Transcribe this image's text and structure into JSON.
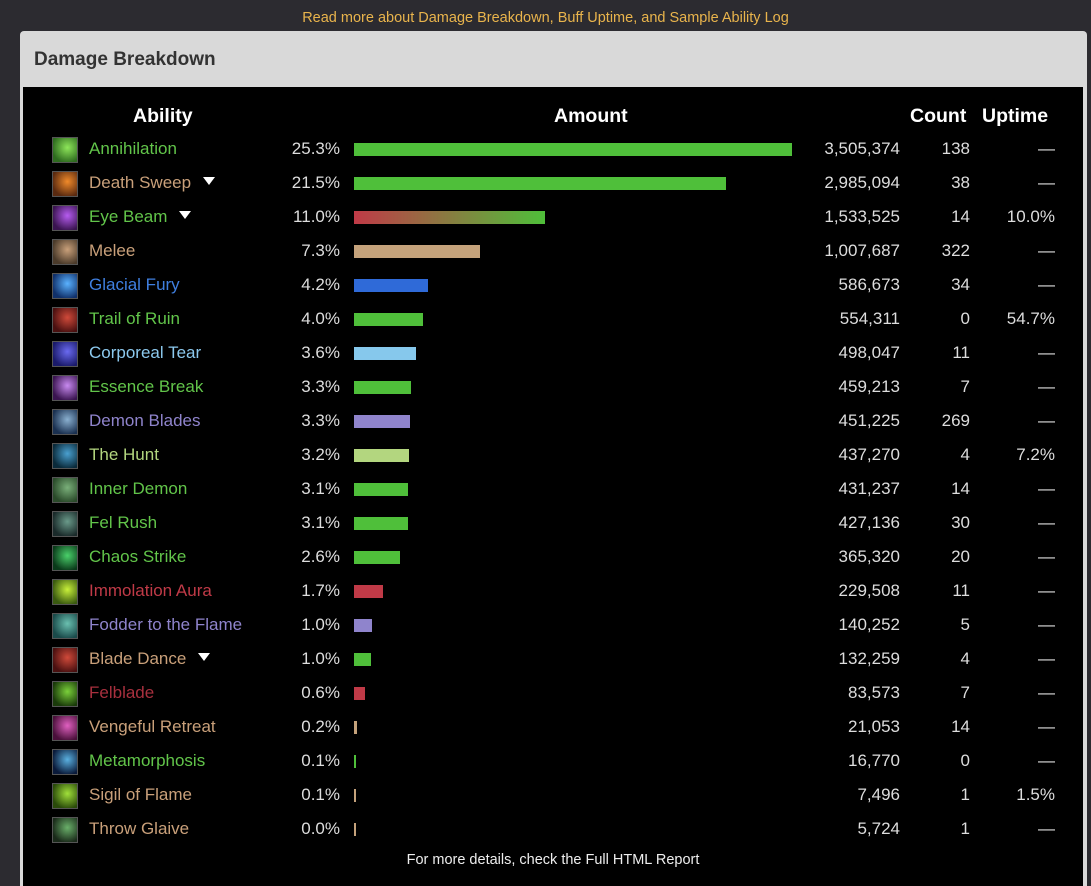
{
  "top_link": "Read more about Damage Breakdown, Buff Uptime, and Sample Ability Log",
  "panel_title": "Damage Breakdown",
  "headers": {
    "ability": "Ability",
    "amount": "Amount",
    "count": "Count",
    "uptime": "Uptime"
  },
  "footer": "For more details, check the Full HTML Report",
  "colors": {
    "green": "#4fbf3a",
    "tan": "#c4a27b",
    "blue": "#2f6ad8",
    "lightblue": "#86c8ec",
    "purple": "#8f84cc",
    "lightgreen": "#b3d67f",
    "red": "#c03a47",
    "eyebeam_gradient": [
      "#c03a47",
      "#4fbf3a"
    ]
  },
  "rows": [
    {
      "name": "Annihilation",
      "name_color": "#62c54a",
      "icon": "annihilation-icon",
      "icon_colors": [
        "#2e6b1f",
        "#8ee65a"
      ],
      "pct": "25.3%",
      "fraction": 1.0,
      "bar_color": "#4fbf3a",
      "amount": "3,505,374",
      "count": "138",
      "uptime": "—",
      "expand": false
    },
    {
      "name": "Death Sweep",
      "name_color": "#c9a07a",
      "icon": "death-sweep-icon",
      "icon_colors": [
        "#5a2a10",
        "#f08a2a"
      ],
      "pct": "21.5%",
      "fraction": 0.849,
      "bar_color": "#4fbf3a",
      "amount": "2,985,094",
      "count": "38",
      "uptime": "—",
      "expand": true
    },
    {
      "name": "Eye Beam",
      "name_color": "#62c54a",
      "icon": "eye-beam-icon",
      "icon_colors": [
        "#3a1450",
        "#b65cf0"
      ],
      "pct": "11.0%",
      "fraction": 0.436,
      "bar_color": "gradient",
      "amount": "1,533,525",
      "count": "14",
      "uptime": "10.0%",
      "expand": true
    },
    {
      "name": "Melee",
      "name_color": "#c9a07a",
      "icon": "melee-icon",
      "icon_colors": [
        "#4a3a2a",
        "#c9a07a"
      ],
      "pct": "7.3%",
      "fraction": 0.288,
      "bar_color": "#c4a27b",
      "amount": "1,007,687",
      "count": "322",
      "uptime": "—",
      "expand": false
    },
    {
      "name": "Glacial Fury",
      "name_color": "#3f7fe0",
      "icon": "glacial-fury-icon",
      "icon_colors": [
        "#10306a",
        "#5ab2ff"
      ],
      "pct": "4.2%",
      "fraction": 0.168,
      "bar_color": "#2f6ad8",
      "amount": "586,673",
      "count": "34",
      "uptime": "—",
      "expand": false
    },
    {
      "name": "Trail of Ruin",
      "name_color": "#62c54a",
      "icon": "trail-of-ruin-icon",
      "icon_colors": [
        "#4a1010",
        "#d04a3a"
      ],
      "pct": "4.0%",
      "fraction": 0.158,
      "bar_color": "#4fbf3a",
      "amount": "554,311",
      "count": "0",
      "uptime": "54.7%",
      "expand": false
    },
    {
      "name": "Corporeal Tear",
      "name_color": "#8cc9ee",
      "icon": "corporeal-tear-icon",
      "icon_colors": [
        "#1a1a6a",
        "#6a6af0"
      ],
      "pct": "3.6%",
      "fraction": 0.142,
      "bar_color": "#86c8ec",
      "amount": "498,047",
      "count": "11",
      "uptime": "—",
      "expand": false
    },
    {
      "name": "Essence Break",
      "name_color": "#62c54a",
      "icon": "essence-break-icon",
      "icon_colors": [
        "#3a1450",
        "#c88af0"
      ],
      "pct": "3.3%",
      "fraction": 0.131,
      "bar_color": "#4fbf3a",
      "amount": "459,213",
      "count": "7",
      "uptime": "—",
      "expand": false
    },
    {
      "name": "Demon Blades",
      "name_color": "#8f84cc",
      "icon": "demon-blades-icon",
      "icon_colors": [
        "#1a3050",
        "#8ab0d0"
      ],
      "pct": "3.3%",
      "fraction": 0.128,
      "bar_color": "#8f84cc",
      "amount": "451,225",
      "count": "269",
      "uptime": "—",
      "expand": false
    },
    {
      "name": "The Hunt",
      "name_color": "#b3d67f",
      "icon": "the-hunt-icon",
      "icon_colors": [
        "#0a2a3a",
        "#4aa0d0"
      ],
      "pct": "3.2%",
      "fraction": 0.126,
      "bar_color": "#b3d67f",
      "amount": "437,270",
      "count": "4",
      "uptime": "7.2%",
      "expand": false
    },
    {
      "name": "Inner Demon",
      "name_color": "#62c54a",
      "icon": "inner-demon-icon",
      "icon_colors": [
        "#2a4a2a",
        "#7ab07a"
      ],
      "pct": "3.1%",
      "fraction": 0.124,
      "bar_color": "#4fbf3a",
      "amount": "431,237",
      "count": "14",
      "uptime": "—",
      "expand": false
    },
    {
      "name": "Fel Rush",
      "name_color": "#62c54a",
      "icon": "fel-rush-icon",
      "icon_colors": [
        "#1a2a2a",
        "#6a9a8a"
      ],
      "pct": "3.1%",
      "fraction": 0.123,
      "bar_color": "#4fbf3a",
      "amount": "427,136",
      "count": "30",
      "uptime": "—",
      "expand": false
    },
    {
      "name": "Chaos Strike",
      "name_color": "#62c54a",
      "icon": "chaos-strike-icon",
      "icon_colors": [
        "#0a3a1a",
        "#4ad06a"
      ],
      "pct": "2.6%",
      "fraction": 0.104,
      "bar_color": "#4fbf3a",
      "amount": "365,320",
      "count": "20",
      "uptime": "—",
      "expand": false
    },
    {
      "name": "Immolation Aura",
      "name_color": "#c03a47",
      "icon": "immolation-aura-icon",
      "icon_colors": [
        "#3a5a10",
        "#c8f03a"
      ],
      "pct": "1.7%",
      "fraction": 0.066,
      "bar_color": "#c03a47",
      "amount": "229,508",
      "count": "11",
      "uptime": "—",
      "expand": false
    },
    {
      "name": "Fodder to the Flame",
      "name_color": "#8f84cc",
      "icon": "fodder-to-the-flame-icon",
      "icon_colors": [
        "#1a4a4a",
        "#6ac0b0"
      ],
      "pct": "1.0%",
      "fraction": 0.04,
      "bar_color": "#8f84cc",
      "amount": "140,252",
      "count": "5",
      "uptime": "—",
      "expand": false
    },
    {
      "name": "Blade Dance",
      "name_color": "#c9a07a",
      "icon": "blade-dance-icon",
      "icon_colors": [
        "#4a1010",
        "#d04a3a"
      ],
      "pct": "1.0%",
      "fraction": 0.038,
      "bar_color": "#4fbf3a",
      "amount": "132,259",
      "count": "4",
      "uptime": "—",
      "expand": true
    },
    {
      "name": "Felblade",
      "name_color": "#a8303e",
      "icon": "felblade-icon",
      "icon_colors": [
        "#1a3a0a",
        "#7ad03a"
      ],
      "pct": "0.6%",
      "fraction": 0.024,
      "bar_color": "#c03a47",
      "amount": "83,573",
      "count": "7",
      "uptime": "—",
      "expand": false
    },
    {
      "name": "Vengeful Retreat",
      "name_color": "#c9a07a",
      "icon": "vengeful-retreat-icon",
      "icon_colors": [
        "#4a103a",
        "#e060c0"
      ],
      "pct": "0.2%",
      "fraction": 0.006,
      "bar_color": "#c4a27b",
      "amount": "21,053",
      "count": "14",
      "uptime": "—",
      "expand": false
    },
    {
      "name": "Metamorphosis",
      "name_color": "#62c54a",
      "icon": "metamorphosis-icon",
      "icon_colors": [
        "#0a1a3a",
        "#5ab0e0"
      ],
      "pct": "0.1%",
      "fraction": 0.005,
      "bar_color": "#4fbf3a",
      "amount": "16,770",
      "count": "0",
      "uptime": "—",
      "expand": false
    },
    {
      "name": "Sigil of Flame",
      "name_color": "#c9a07a",
      "icon": "sigil-of-flame-icon",
      "icon_colors": [
        "#2a4a0a",
        "#a0e03a"
      ],
      "pct": "0.1%",
      "fraction": 0.002,
      "bar_color": "#c4a27b",
      "amount": "7,496",
      "count": "1",
      "uptime": "1.5%",
      "expand": false
    },
    {
      "name": "Throw Glaive",
      "name_color": "#c9a07a",
      "icon": "throw-glaive-icon",
      "icon_colors": [
        "#1a2a1a",
        "#6ab06a"
      ],
      "pct": "0.0%",
      "fraction": 0.002,
      "bar_color": "#c4a27b",
      "amount": "5,724",
      "count": "1",
      "uptime": "—",
      "expand": false
    }
  ]
}
